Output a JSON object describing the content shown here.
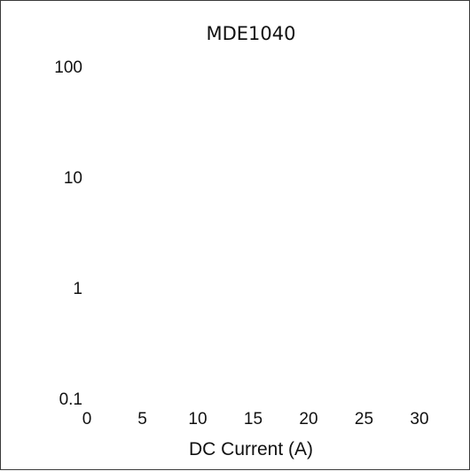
{
  "chart_data": {
    "type": "line",
    "title": "MDE1040",
    "xlabel": "DC Current (A)",
    "ylabel": "",
    "x_ticks": [
      "0",
      "5",
      "10",
      "15",
      "20",
      "25",
      "30"
    ],
    "y_ticks": [
      "100",
      "10",
      "1",
      "0.1"
    ],
    "xlim": [
      0,
      30
    ],
    "ylim": [
      0.1,
      100
    ],
    "y_scale": "log",
    "grid": false,
    "series": []
  }
}
